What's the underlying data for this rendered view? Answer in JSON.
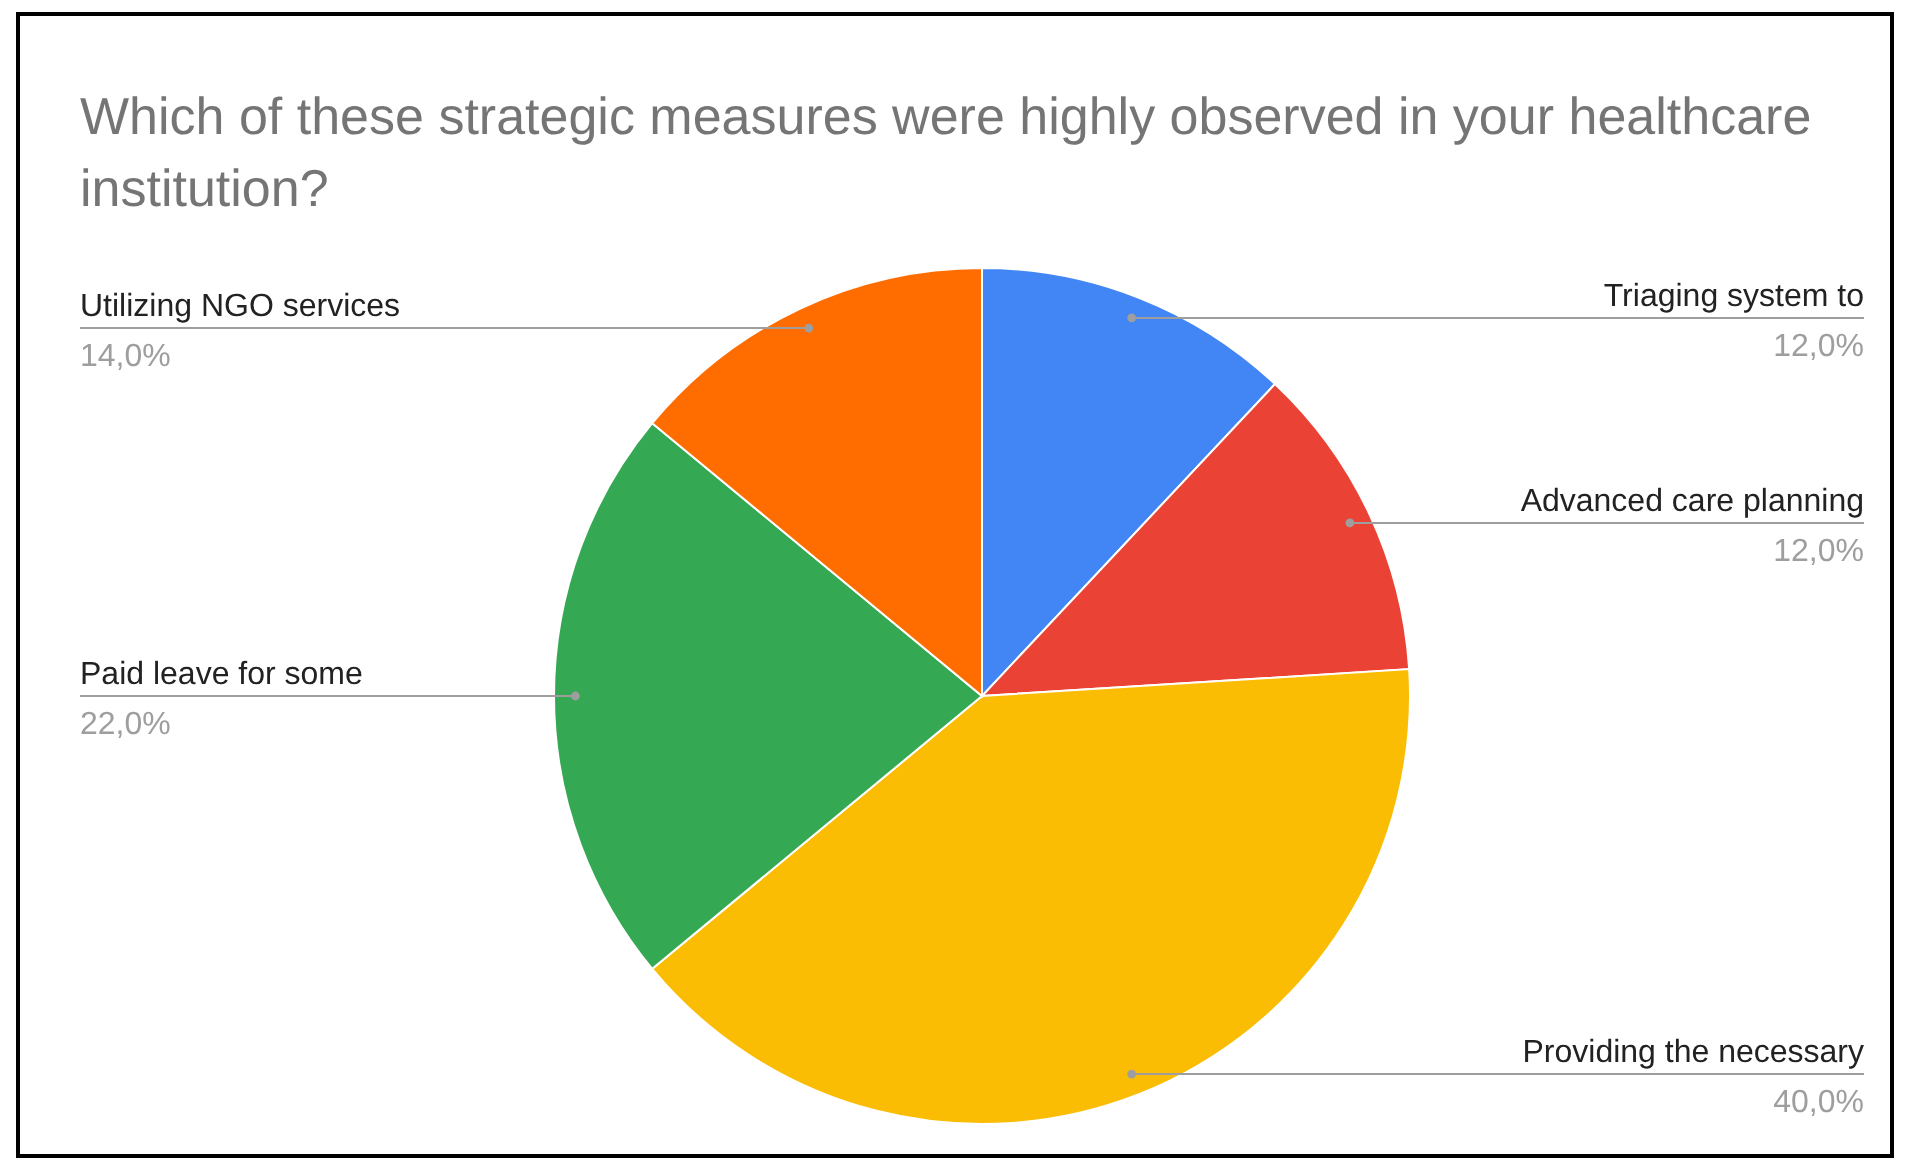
{
  "chart_data": {
    "type": "pie",
    "title": "Which of these strategic measures were highly observed in your healthcare institution?",
    "categories": [
      "Triaging system to",
      "Advanced care planning",
      "Providing the necessary",
      "Paid leave for some",
      "Utilizing NGO services"
    ],
    "values": [
      12.0,
      12.0,
      40.0,
      22.0,
      14.0
    ],
    "colors": [
      "#4285f4",
      "#ea4335",
      "#fbbc04",
      "#34a853",
      "#ff6d01"
    ],
    "value_labels": [
      "12,0%",
      "12,0%",
      "40,0%",
      "22,0%",
      "14,0%"
    ]
  }
}
